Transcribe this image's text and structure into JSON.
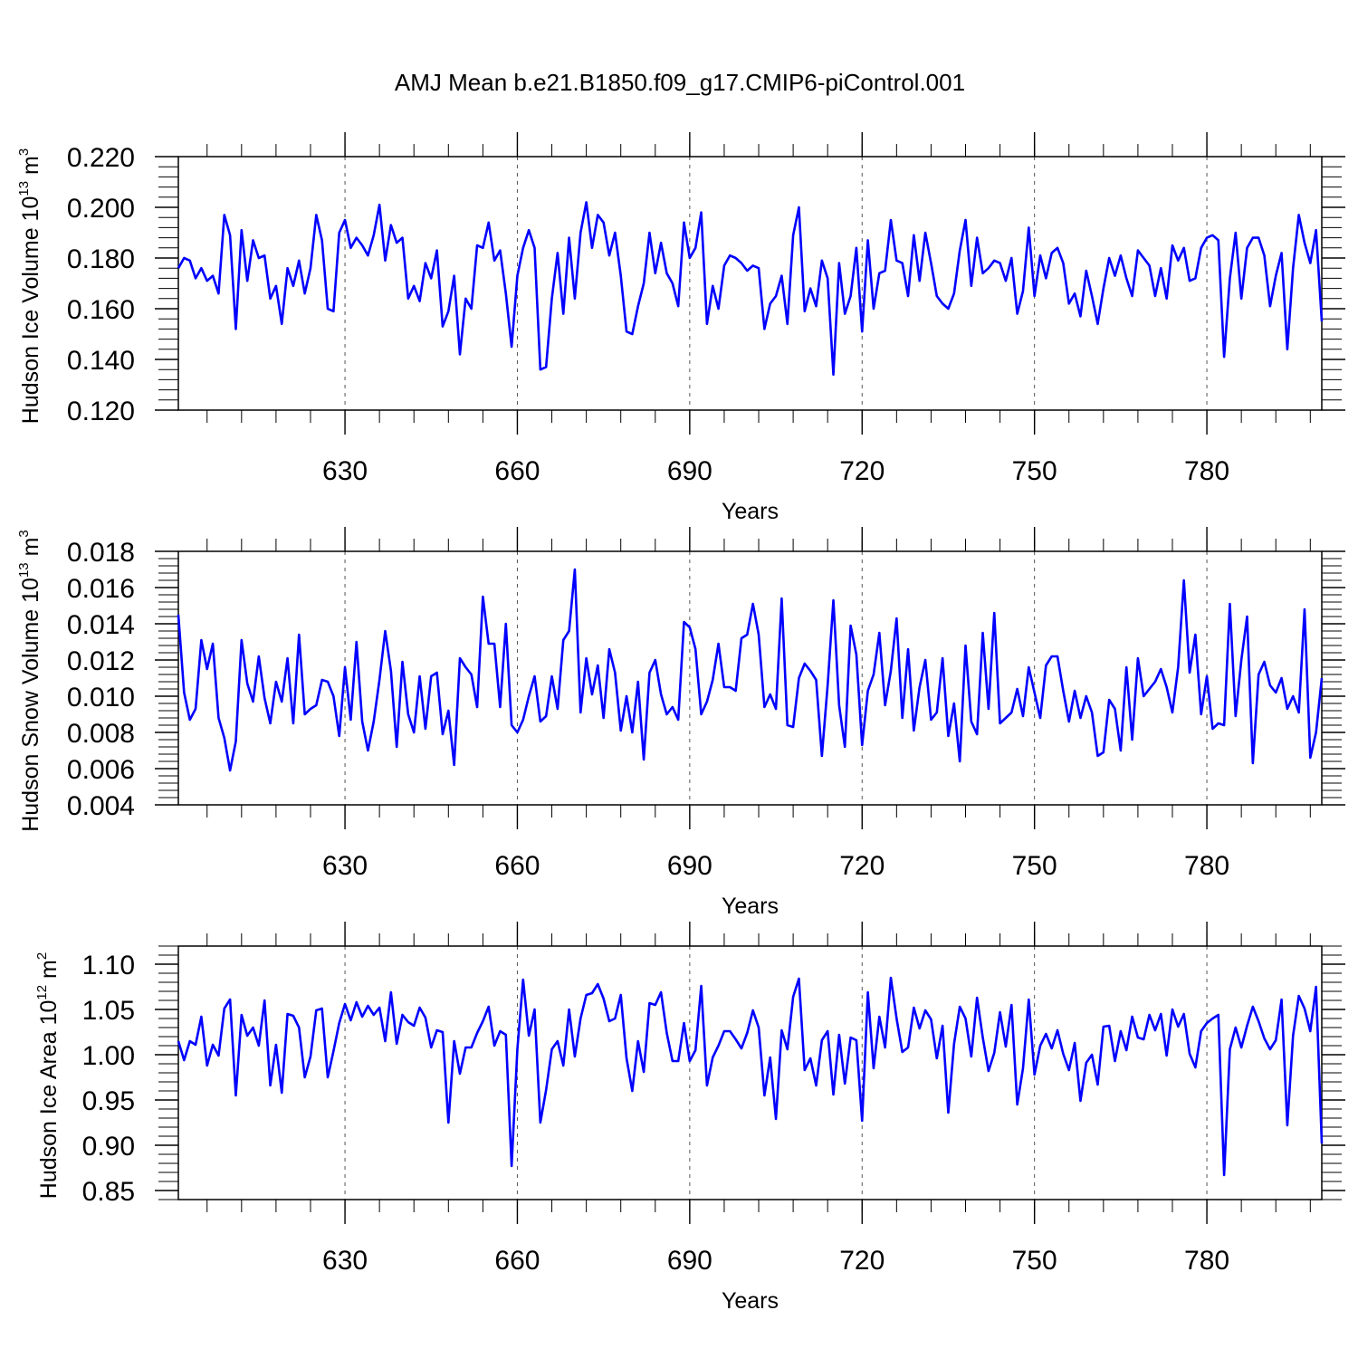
{
  "title": "AMJ Mean b.e21.B1850.f09_g17.CMIP6-piControl.001",
  "colors": {
    "line": "#0000ff",
    "axis": "#000000",
    "grid": "#555555"
  },
  "chart_data": [
    {
      "type": "line",
      "ylabel_main": "Hudson Ice Volume 10",
      "ylabel_exp": "13",
      "ylabel_unit": " m",
      "ylabel_unit_exp": "3",
      "xlabel": "Years",
      "xlim": [
        601,
        800
      ],
      "ylim": [
        0.12,
        0.22
      ],
      "yticks": [
        "0.120",
        "0.140",
        "0.160",
        "0.180",
        "0.200",
        "0.220"
      ],
      "ytick_values": [
        0.12,
        0.14,
        0.16,
        0.18,
        0.2,
        0.22
      ],
      "yminor_step": 0.004,
      "xticks": [
        "630",
        "660",
        "690",
        "720",
        "750",
        "780"
      ],
      "xtick_values": [
        630,
        660,
        690,
        720,
        750,
        780
      ],
      "xminor_step": 6,
      "x_start": 601,
      "values": [
        0.176,
        0.18,
        0.179,
        0.172,
        0.176,
        0.171,
        0.173,
        0.166,
        0.197,
        0.189,
        0.152,
        0.191,
        0.171,
        0.187,
        0.18,
        0.181,
        0.164,
        0.169,
        0.154,
        0.176,
        0.169,
        0.179,
        0.166,
        0.176,
        0.197,
        0.187,
        0.16,
        0.159,
        0.19,
        0.195,
        0.184,
        0.188,
        0.185,
        0.181,
        0.189,
        0.201,
        0.179,
        0.193,
        0.186,
        0.188,
        0.164,
        0.169,
        0.163,
        0.178,
        0.172,
        0.183,
        0.153,
        0.159,
        0.173,
        0.142,
        0.164,
        0.16,
        0.185,
        0.184,
        0.194,
        0.179,
        0.183,
        0.166,
        0.145,
        0.173,
        0.184,
        0.191,
        0.184,
        0.136,
        0.137,
        0.164,
        0.182,
        0.158,
        0.188,
        0.164,
        0.19,
        0.202,
        0.184,
        0.197,
        0.194,
        0.181,
        0.19,
        0.173,
        0.151,
        0.15,
        0.161,
        0.17,
        0.19,
        0.174,
        0.186,
        0.174,
        0.17,
        0.161,
        0.194,
        0.18,
        0.184,
        0.198,
        0.154,
        0.169,
        0.16,
        0.177,
        0.181,
        0.18,
        0.178,
        0.175,
        0.177,
        0.176,
        0.152,
        0.162,
        0.165,
        0.173,
        0.154,
        0.189,
        0.2,
        0.159,
        0.168,
        0.161,
        0.179,
        0.172,
        0.134,
        0.178,
        0.158,
        0.165,
        0.184,
        0.151,
        0.187,
        0.16,
        0.174,
        0.175,
        0.195,
        0.179,
        0.178,
        0.165,
        0.189,
        0.171,
        0.19,
        0.178,
        0.165,
        0.162,
        0.16,
        0.166,
        0.183,
        0.195,
        0.169,
        0.188,
        0.174,
        0.176,
        0.179,
        0.178,
        0.171,
        0.18,
        0.158,
        0.167,
        0.192,
        0.165,
        0.181,
        0.172,
        0.182,
        0.184,
        0.178,
        0.162,
        0.166,
        0.157,
        0.175,
        0.165,
        0.154,
        0.168,
        0.18,
        0.173,
        0.181,
        0.172,
        0.165,
        0.183,
        0.18,
        0.177,
        0.165,
        0.176,
        0.164,
        0.185,
        0.179,
        0.184,
        0.171,
        0.172,
        0.184,
        0.188,
        0.189,
        0.187,
        0.141,
        0.172,
        0.19,
        0.164,
        0.184,
        0.188,
        0.188,
        0.181,
        0.161,
        0.173,
        0.182,
        0.144,
        0.176,
        0.197,
        0.186,
        0.178,
        0.191,
        0.155
      ]
    },
    {
      "type": "line",
      "ylabel_main": "Hudson Snow Volume 10",
      "ylabel_exp": "13",
      "ylabel_unit": " m",
      "ylabel_unit_exp": "3",
      "xlabel": "Years",
      "xlim": [
        601,
        800
      ],
      "ylim": [
        0.004,
        0.018
      ],
      "yticks": [
        "0.004",
        "0.006",
        "0.008",
        "0.010",
        "0.012",
        "0.014",
        "0.016",
        "0.018"
      ],
      "ytick_values": [
        0.004,
        0.006,
        0.008,
        0.01,
        0.012,
        0.014,
        0.016,
        0.018
      ],
      "yminor_step": 0.0004,
      "xticks": [
        "630",
        "660",
        "690",
        "720",
        "750",
        "780"
      ],
      "xtick_values": [
        630,
        660,
        690,
        720,
        750,
        780
      ],
      "xminor_step": 6,
      "x_start": 601,
      "values": [
        0.0145,
        0.0102,
        0.0087,
        0.0093,
        0.0131,
        0.0115,
        0.0129,
        0.0088,
        0.0077,
        0.0059,
        0.0075,
        0.0131,
        0.0107,
        0.0097,
        0.0122,
        0.0099,
        0.0085,
        0.0108,
        0.0097,
        0.0121,
        0.0085,
        0.0134,
        0.009,
        0.0093,
        0.0095,
        0.0109,
        0.0108,
        0.01,
        0.0078,
        0.0116,
        0.0087,
        0.013,
        0.0086,
        0.007,
        0.0086,
        0.0109,
        0.0136,
        0.0114,
        0.0072,
        0.0119,
        0.009,
        0.008,
        0.0111,
        0.0082,
        0.0111,
        0.0113,
        0.0079,
        0.0092,
        0.0062,
        0.0121,
        0.0116,
        0.0112,
        0.0094,
        0.0155,
        0.0129,
        0.0129,
        0.0094,
        0.014,
        0.0084,
        0.008,
        0.0087,
        0.01,
        0.0111,
        0.0086,
        0.0089,
        0.0111,
        0.0093,
        0.0131,
        0.0136,
        0.017,
        0.0091,
        0.0121,
        0.0101,
        0.0117,
        0.0088,
        0.0126,
        0.0113,
        0.0081,
        0.01,
        0.008,
        0.0108,
        0.0065,
        0.0113,
        0.012,
        0.0101,
        0.009,
        0.0094,
        0.0087,
        0.0141,
        0.0138,
        0.0126,
        0.009,
        0.0097,
        0.0109,
        0.0129,
        0.0105,
        0.0105,
        0.0103,
        0.0132,
        0.0134,
        0.0151,
        0.0134,
        0.0094,
        0.0101,
        0.0093,
        0.0154,
        0.0084,
        0.0083,
        0.011,
        0.0118,
        0.0114,
        0.0109,
        0.0067,
        0.0106,
        0.0153,
        0.0095,
        0.0072,
        0.0139,
        0.0123,
        0.0073,
        0.0103,
        0.0112,
        0.0135,
        0.0095,
        0.0114,
        0.0143,
        0.0088,
        0.0126,
        0.0081,
        0.0105,
        0.012,
        0.0087,
        0.0091,
        0.0121,
        0.0078,
        0.0096,
        0.0064,
        0.0128,
        0.0086,
        0.0079,
        0.0135,
        0.0093,
        0.0146,
        0.0085,
        0.0088,
        0.0091,
        0.0104,
        0.0089,
        0.0116,
        0.0102,
        0.0088,
        0.0117,
        0.0122,
        0.0122,
        0.0103,
        0.0086,
        0.0103,
        0.0088,
        0.01,
        0.0091,
        0.0067,
        0.0069,
        0.0098,
        0.0093,
        0.007,
        0.0116,
        0.0076,
        0.0121,
        0.01,
        0.0104,
        0.0108,
        0.0115,
        0.0105,
        0.0091,
        0.0116,
        0.0164,
        0.0113,
        0.0134,
        0.009,
        0.0111,
        0.0082,
        0.0085,
        0.0084,
        0.0151,
        0.0089,
        0.012,
        0.0144,
        0.0063,
        0.0112,
        0.0119,
        0.0106,
        0.0102,
        0.011,
        0.0093,
        0.01,
        0.0091,
        0.0148,
        0.0066,
        0.008,
        0.011
      ]
    },
    {
      "type": "line",
      "ylabel_main": "Hudson Ice Area 10",
      "ylabel_exp": "12",
      "ylabel_unit": " m",
      "ylabel_unit_exp": "2",
      "xlabel": "Years",
      "xlim": [
        601,
        800
      ],
      "ylim": [
        0.84,
        1.12
      ],
      "yticks": [
        "0.85",
        "0.90",
        "0.95",
        "1.00",
        "1.05",
        "1.10"
      ],
      "ytick_values": [
        0.85,
        0.9,
        0.95,
        1.0,
        1.05,
        1.1
      ],
      "yminor_step": 0.01,
      "xticks": [
        "630",
        "660",
        "690",
        "720",
        "750",
        "780"
      ],
      "xtick_values": [
        630,
        660,
        690,
        720,
        750,
        780
      ],
      "xminor_step": 6,
      "x_start": 601,
      "values": [
        1.015,
        0.994,
        1.015,
        1.011,
        1.042,
        0.988,
        1.011,
        0.999,
        1.051,
        1.061,
        0.955,
        1.044,
        1.021,
        1.03,
        1.01,
        1.06,
        0.966,
        1.011,
        0.958,
        1.045,
        1.043,
        1.03,
        0.975,
        0.998,
        1.049,
        1.051,
        0.975,
        1.004,
        1.035,
        1.056,
        1.038,
        1.058,
        1.042,
        1.054,
        1.044,
        1.052,
        1.015,
        1.069,
        1.012,
        1.044,
        1.036,
        1.032,
        1.052,
        1.041,
        1.008,
        1.027,
        1.025,
        0.925,
        1.015,
        0.979,
        1.008,
        1.008,
        1.024,
        1.037,
        1.053,
        1.01,
        1.026,
        1.022,
        0.877,
        1.006,
        1.083,
        1.021,
        1.05,
        0.925,
        0.961,
        1.006,
        1.015,
        0.988,
        1.05,
        0.998,
        1.04,
        1.066,
        1.068,
        1.078,
        1.062,
        1.037,
        1.04,
        1.066,
        0.996,
        0.96,
        1.015,
        0.981,
        1.057,
        1.055,
        1.069,
        1.024,
        0.993,
        0.993,
        1.035,
        0.993,
        1.005,
        1.076,
        0.966,
        0.997,
        1.01,
        1.026,
        1.026,
        1.017,
        1.007,
        1.024,
        1.049,
        1.03,
        0.955,
        0.997,
        0.929,
        1.027,
        1.006,
        1.064,
        1.084,
        0.983,
        0.996,
        0.966,
        1.016,
        1.026,
        0.956,
        1.022,
        0.968,
        1.019,
        1.016,
        0.927,
        1.069,
        0.985,
        1.042,
        1.008,
        1.085,
        1.04,
        1.003,
        1.008,
        1.052,
        1.029,
        1.049,
        1.039,
        0.996,
        1.032,
        0.936,
        1.012,
        1.053,
        1.04,
        0.998,
        1.063,
        1.019,
        0.982,
        1.002,
        1.047,
        1.009,
        1.055,
        0.945,
        0.985,
        1.061,
        0.978,
        1.01,
        1.023,
        1.007,
        1.027,
        1.001,
        0.983,
        1.013,
        0.949,
        0.991,
        1.0,
        0.967,
        1.031,
        1.032,
        0.993,
        1.026,
        1.005,
        1.042,
        1.019,
        1.017,
        1.044,
        1.027,
        1.045,
        0.999,
        1.05,
        1.031,
        1.045,
        1.001,
        0.986,
        1.026,
        1.035,
        1.04,
        1.044,
        0.867,
        1.006,
        1.03,
        1.008,
        1.032,
        1.053,
        1.037,
        1.018,
        1.006,
        1.016,
        1.061,
        0.922,
        1.021,
        1.065,
        1.051,
        1.026,
        1.075,
        0.902
      ]
    }
  ]
}
